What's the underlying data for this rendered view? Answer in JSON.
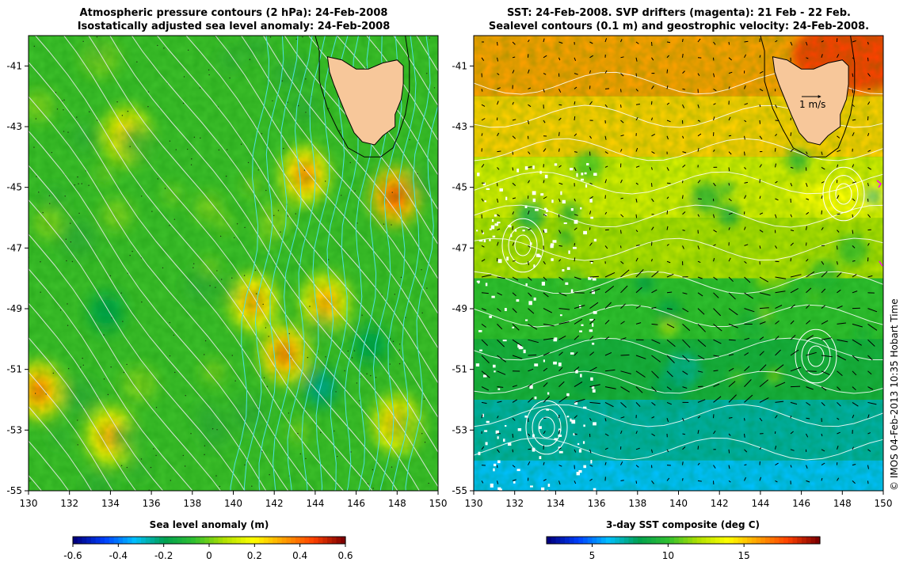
{
  "left_panel": {
    "title_line1": "Atmospheric pressure contours (2 hPa): 24-Feb-2008",
    "title_line2": "Isostatically adjusted sea level anomaly: 24-Feb-2008",
    "colorbar_label": "Sea level anomaly (m)",
    "colorbar_ticks": [
      "-0.6",
      "-0.4",
      "-0.2",
      "0",
      "0.2",
      "0.4",
      "0.6"
    ]
  },
  "right_panel": {
    "title_line1": "SST: 24-Feb-2008. SVP drifters (magenta): 21 Feb - 22 Feb.",
    "title_line2": "Sealevel contours (0.1 m) and geostrophic velocity: 24-Feb-2008.",
    "colorbar_label": "3-day SST composite (deg C)",
    "colorbar_ticks": [
      "5",
      "10",
      "15"
    ],
    "scale_arrow_label": "1 m/s"
  },
  "credit": "© IMOS 04-Feb-2013 10:35 Hobart Time",
  "colors": {
    "land": "#f7c79a",
    "pressure_contour": "#e8e8e8",
    "sla_contour": "#4fe0e0",
    "colormap": [
      "#00007f",
      "#0040ff",
      "#00c0ff",
      "#00a050",
      "#30c030",
      "#b0e000",
      "#ffff00",
      "#ffa000",
      "#ff4000",
      "#800000"
    ]
  },
  "chart_data": [
    {
      "type": "heatmap",
      "title": "Atmospheric pressure contours (2 hPa): 24-Feb-2008 / Isostatically adjusted sea level anomaly: 24-Feb-2008",
      "xlabel": "",
      "ylabel": "",
      "xlim": [
        130,
        150
      ],
      "ylim": [
        -55,
        -40
      ],
      "x_ticks": [
        130,
        132,
        134,
        136,
        138,
        140,
        142,
        144,
        146,
        148,
        150
      ],
      "y_ticks": [
        -55,
        -53,
        -51,
        -49,
        -47,
        -45,
        -43,
        -41
      ],
      "colorbar": {
        "label": "Sea level anomaly (m)",
        "range": [
          -0.6,
          0.6
        ],
        "ticks": [
          -0.6,
          -0.4,
          -0.2,
          0,
          0.2,
          0.4,
          0.6
        ]
      },
      "features": [
        {
          "lon": 142.5,
          "lat": -50.5,
          "value": 0.3
        },
        {
          "lon": 141.0,
          "lat": -48.8,
          "value": 0.25
        },
        {
          "lon": 143.5,
          "lat": -44.6,
          "value": 0.28
        },
        {
          "lon": 147.9,
          "lat": -45.3,
          "value": 0.35
        },
        {
          "lon": 134.8,
          "lat": -43.3,
          "value": 0.2
        },
        {
          "lon": 130.5,
          "lat": -51.7,
          "value": 0.3
        },
        {
          "lon": 134.0,
          "lat": -53.2,
          "value": 0.25
        },
        {
          "lon": 144.5,
          "lat": -48.8,
          "value": 0.25
        },
        {
          "lon": 148.0,
          "lat": -52.8,
          "value": 0.25
        },
        {
          "lon": 133.8,
          "lat": -49.1,
          "value": -0.15
        },
        {
          "lon": 144.3,
          "lat": -51.6,
          "value": -0.2
        },
        {
          "lon": 146.7,
          "lat": -50.2,
          "value": -0.15
        }
      ]
    },
    {
      "type": "heatmap",
      "title": "SST: 24-Feb-2008. SVP drifters (magenta): 21 Feb - 22 Feb. / Sealevel contours (0.1 m) and geostrophic velocity: 24-Feb-2008.",
      "xlabel": "",
      "ylabel": "",
      "xlim": [
        130,
        150
      ],
      "ylim": [
        -55,
        -40
      ],
      "x_ticks": [
        130,
        132,
        134,
        136,
        138,
        140,
        142,
        144,
        146,
        148,
        150
      ],
      "y_ticks": [
        -55,
        -53,
        -51,
        -49,
        -47,
        -45,
        -43,
        -41
      ],
      "colorbar": {
        "label": "3-day SST composite (deg C)",
        "range": [
          2,
          20
        ],
        "ticks": [
          5,
          10,
          15
        ]
      },
      "sst_bands": [
        {
          "lat_range": [
            -42,
            -40
          ],
          "sst": 16
        },
        {
          "lat_range": [
            -44,
            -42
          ],
          "sst": 15
        },
        {
          "lat_range": [
            -46,
            -44
          ],
          "sst": 13
        },
        {
          "lat_range": [
            -48,
            -46
          ],
          "sst": 12
        },
        {
          "lat_range": [
            -50,
            -48
          ],
          "sst": 10
        },
        {
          "lat_range": [
            -52,
            -50
          ],
          "sst": 9
        },
        {
          "lat_range": [
            -54,
            -52
          ],
          "sst": 7
        },
        {
          "lat_range": [
            -55,
            -54
          ],
          "sst": 6
        }
      ],
      "velocity_scale": "1 m/s"
    }
  ]
}
